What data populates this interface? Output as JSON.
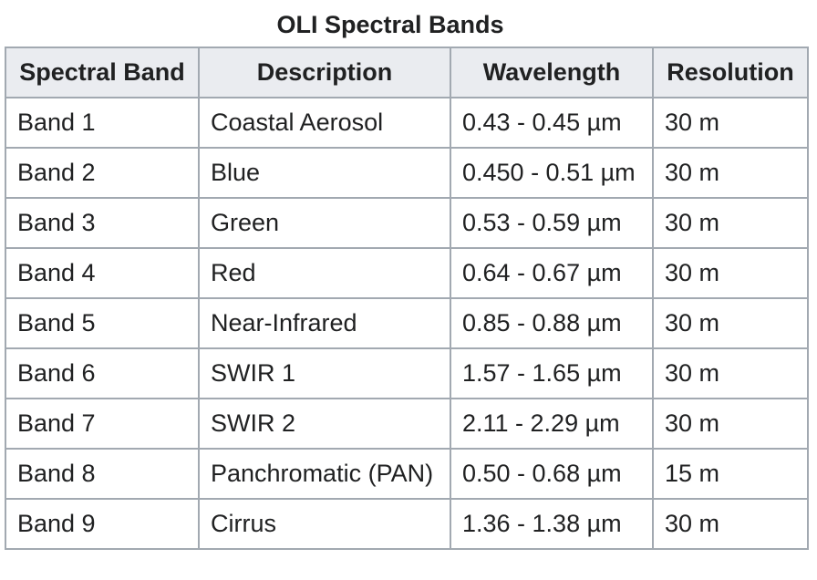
{
  "table": {
    "caption": "OLI Spectral Bands",
    "headers": [
      "Spectral Band",
      "Description",
      "Wavelength",
      "Resolution"
    ],
    "rows": [
      [
        "Band 1",
        "Coastal Aerosol",
        "0.43 - 0.45 µm",
        "30 m"
      ],
      [
        "Band 2",
        "Blue",
        "0.450 - 0.51 µm",
        "30 m"
      ],
      [
        "Band 3",
        "Green",
        "0.53 - 0.59 µm",
        "30 m"
      ],
      [
        "Band 4",
        "Red",
        "0.64 - 0.67 µm",
        "30 m"
      ],
      [
        "Band 5",
        "Near-Infrared",
        "0.85 - 0.88 µm",
        "30 m"
      ],
      [
        "Band 6",
        "SWIR 1",
        "1.57 - 1.65 µm",
        "30 m"
      ],
      [
        "Band 7",
        "SWIR 2",
        "2.11 - 2.29 µm",
        "30 m"
      ],
      [
        "Band 8",
        "Panchromatic (PAN)",
        "0.50 - 0.68 µm",
        "15 m"
      ],
      [
        "Band 9",
        "Cirrus",
        "1.36 - 1.38 µm",
        "30 m"
      ]
    ]
  },
  "colors": {
    "header_bg": "#eaecf0",
    "border": "#a2a9b1",
    "text": "#202122",
    "cell_bg": "#ffffff"
  }
}
